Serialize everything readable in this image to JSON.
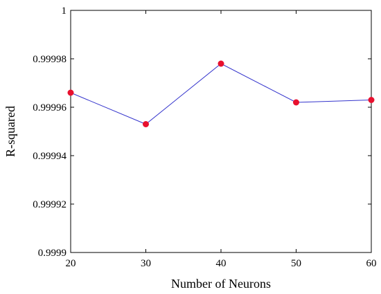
{
  "chart_data": {
    "type": "line",
    "title": "",
    "xlabel": "Number of Neurons",
    "ylabel": "R-squared",
    "x": [
      20,
      30,
      40,
      50,
      60
    ],
    "series": [
      {
        "values": [
          0.999966,
          0.999953,
          0.999978,
          0.999962,
          0.999963
        ]
      }
    ],
    "xlim": [
      20,
      60
    ],
    "ylim": [
      0.9999,
      1.0
    ],
    "xticks": [
      "20",
      "30",
      "40",
      "50",
      "60"
    ],
    "yticks": [
      "0.9999",
      "0.99992",
      "0.99994",
      "0.99996",
      "0.99998",
      "1"
    ],
    "grid": false,
    "line_color": "#3333cc",
    "marker_color": "#e8102e"
  }
}
